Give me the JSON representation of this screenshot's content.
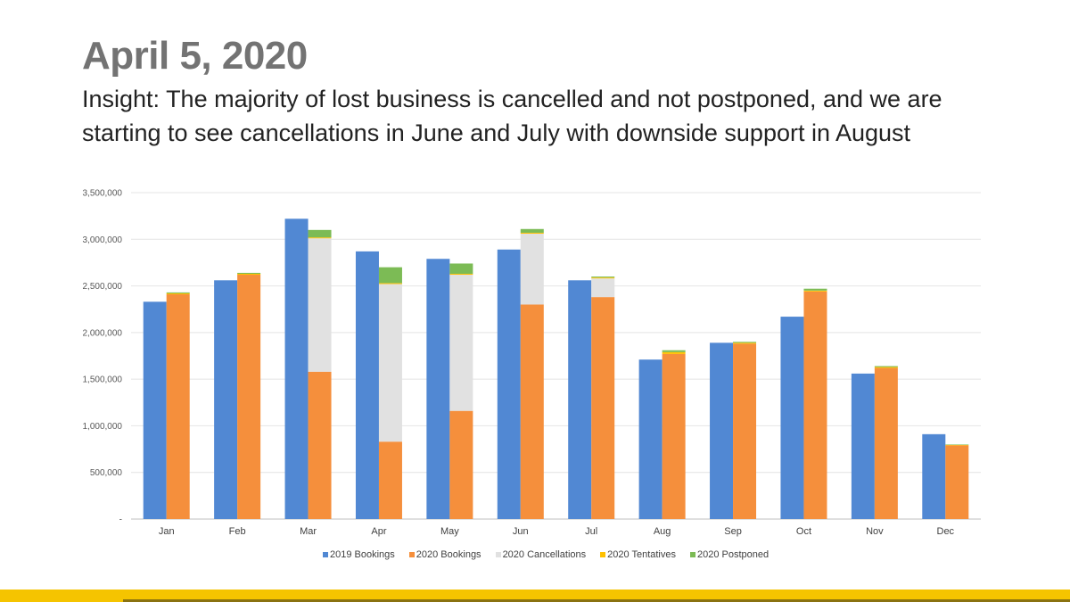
{
  "title": "April 5, 2020",
  "insight": "Insight: The majority of lost business is cancelled and not postponed, and we are starting to see cancellations in June and July with downside support in August",
  "chart_data": {
    "type": "bar",
    "categories": [
      "Jan",
      "Feb",
      "Mar",
      "Apr",
      "May",
      "Jun",
      "Jul",
      "Aug",
      "Sep",
      "Oct",
      "Nov",
      "Dec"
    ],
    "series": [
      {
        "name": "2019 Bookings",
        "color": "#5188d3",
        "stack": "a",
        "values": [
          2330000,
          2560000,
          3220000,
          2870000,
          2790000,
          2890000,
          2560000,
          1710000,
          1890000,
          2170000,
          1560000,
          910000
        ]
      },
      {
        "name": "2020 Bookings",
        "color": "#f58f3c",
        "stack": "b",
        "values": [
          2410000,
          2620000,
          1580000,
          830000,
          1160000,
          2300000,
          2380000,
          1770000,
          1880000,
          2440000,
          1620000,
          790000
        ]
      },
      {
        "name": "2020 Cancellations",
        "color": "#e1e1e1",
        "stack": "b",
        "values": [
          0,
          0,
          1430000,
          1690000,
          1460000,
          760000,
          200000,
          0,
          0,
          0,
          0,
          0
        ]
      },
      {
        "name": "2020 Tentatives",
        "color": "#ffc000",
        "stack": "b",
        "values": [
          10000,
          10000,
          10000,
          10000,
          10000,
          10000,
          10000,
          20000,
          10000,
          10000,
          10000,
          5000
        ]
      },
      {
        "name": "2020 Postponed",
        "color": "#7cbb55",
        "stack": "b",
        "values": [
          10000,
          10000,
          80000,
          170000,
          110000,
          40000,
          10000,
          20000,
          10000,
          20000,
          10000,
          5000
        ]
      }
    ],
    "yticks": [
      "-",
      "500,000",
      "1,000,000",
      "1,500,000",
      "2,000,000",
      "2,500,000",
      "3,000,000",
      "3,500,000"
    ],
    "ylim": [
      0,
      3500000
    ],
    "grid": true,
    "legend_position": "bottom"
  }
}
